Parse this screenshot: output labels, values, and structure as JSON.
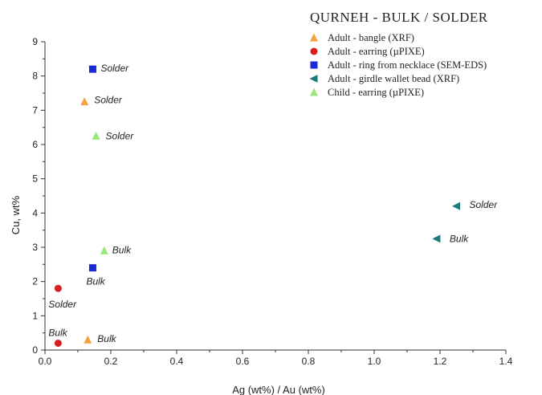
{
  "chart_data": {
    "type": "scatter",
    "title": "QURNEH - BULK / SOLDER",
    "xlabel": "Ag (wt%) / Au (wt%)",
    "ylabel": "Cu, wt%",
    "xlim": [
      0.0,
      1.4
    ],
    "ylim": [
      0,
      9
    ],
    "x_ticks": [
      "0.0",
      "0.2",
      "0.4",
      "0.6",
      "0.8",
      "1.0",
      "1.2",
      "1.4"
    ],
    "y_ticks": [
      "0",
      "1",
      "2",
      "3",
      "4",
      "5",
      "6",
      "7",
      "8",
      "9"
    ],
    "grid": false,
    "legend_position": "top-right",
    "series": [
      {
        "name": "Adult - bangle (XRF)",
        "marker": "triangle-up",
        "color": "#f5a23c",
        "points": [
          {
            "x": 0.13,
            "y": 0.3,
            "label": "Bulk"
          },
          {
            "x": 0.12,
            "y": 7.25,
            "label": "Solder"
          }
        ]
      },
      {
        "name": "Adult - earring (µPIXE)",
        "marker": "circle",
        "color": "#d81e1e",
        "points": [
          {
            "x": 0.04,
            "y": 0.2,
            "label": "Bulk"
          },
          {
            "x": 0.04,
            "y": 1.8,
            "label": "Solder"
          }
        ]
      },
      {
        "name": "Adult - ring from necklace (SEM-EDS)",
        "marker": "square",
        "color": "#1a2ad6",
        "points": [
          {
            "x": 0.145,
            "y": 2.4,
            "label": "Bulk"
          },
          {
            "x": 0.145,
            "y": 8.2,
            "label": "Solder"
          }
        ]
      },
      {
        "name": "Adult - girdle wallet bead (XRF)",
        "marker": "triangle-left",
        "color": "#1e7a78",
        "points": [
          {
            "x": 1.19,
            "y": 3.25,
            "label": "Bulk"
          },
          {
            "x": 1.25,
            "y": 4.2,
            "label": "Solder"
          }
        ]
      },
      {
        "name": "Child - earring (µPIXE)",
        "marker": "triangle-up",
        "color": "#9ae87a",
        "points": [
          {
            "x": 0.18,
            "y": 2.9,
            "label": "Bulk"
          },
          {
            "x": 0.155,
            "y": 6.25,
            "label": "Solder"
          }
        ]
      }
    ]
  }
}
